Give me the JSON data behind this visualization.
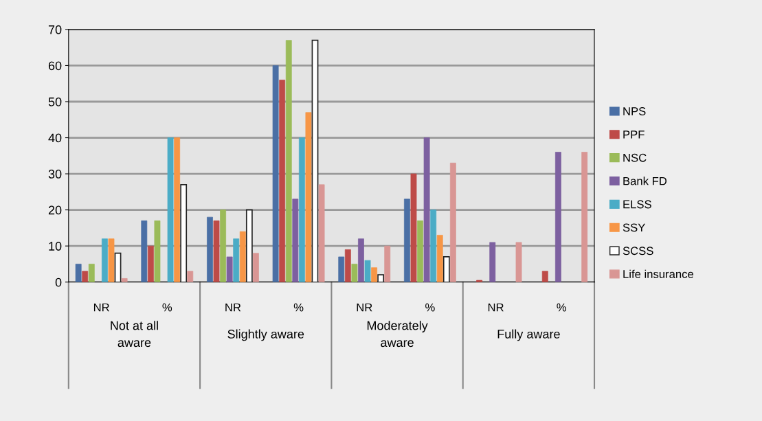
{
  "chart_data": {
    "type": "bar",
    "categories": [
      "NR",
      "%",
      "NR",
      "%",
      "NR",
      "%",
      "NR",
      "%"
    ],
    "annotations": [
      "Not at all\naware",
      "Slightly aware",
      "Moderately\naware",
      "Fully aware"
    ],
    "series": [
      {
        "name": "NPS",
        "color": "#4a6fa5",
        "values": [
          5,
          17,
          18,
          60,
          7,
          23,
          0,
          0
        ]
      },
      {
        "name": "PPF",
        "color": "#be4b48",
        "values": [
          3,
          10,
          17,
          56,
          9,
          30,
          0.5,
          3
        ]
      },
      {
        "name": "NSC",
        "color": "#9bbb59",
        "values": [
          5,
          17,
          20,
          67,
          5,
          17,
          0,
          0
        ]
      },
      {
        "name": "Bank FD",
        "color": "#7d60a0",
        "values": [
          0,
          0,
          7,
          23,
          12,
          40,
          11,
          36
        ]
      },
      {
        "name": "ELSS",
        "color": "#4bacc6",
        "values": [
          12,
          40,
          12,
          40,
          6,
          20,
          0,
          0
        ]
      },
      {
        "name": "SSY",
        "color": "#f79646",
        "values": [
          12,
          40,
          14,
          47,
          4,
          13,
          0,
          0
        ]
      },
      {
        "name": "SCSS",
        "color": "#ffffff",
        "values": [
          8,
          27,
          20,
          67,
          2,
          7,
          0,
          0
        ]
      },
      {
        "name": "Life insurance",
        "color": "#d99694",
        "values": [
          1,
          3,
          8,
          27,
          10,
          33,
          11,
          36
        ]
      }
    ],
    "ylim": [
      0,
      70
    ],
    "yticks": [
      0,
      10,
      20,
      30,
      40,
      50,
      60,
      70
    ],
    "grid": "y",
    "legend": "right"
  }
}
